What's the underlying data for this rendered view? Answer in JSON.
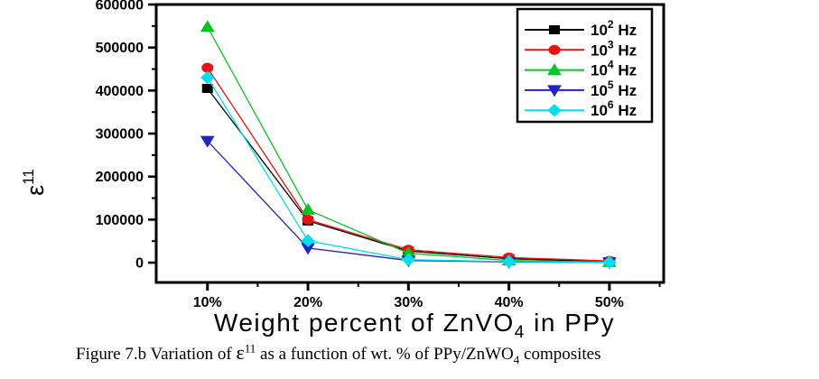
{
  "page": {
    "background": "#ffffff",
    "text_color": "#000000"
  },
  "caption": {
    "prefix": "Figure 7.b Variation of ",
    "epsilon": "ε",
    "epsilon_sup": "11",
    "middle": " as a function of wt. % of PPy/ZnWO",
    "sub": "4",
    "suffix": " composites"
  },
  "chart_data": {
    "type": "line",
    "title": "",
    "xlabel": "Weight percent of ZnVO4 in PPy",
    "xlabel_parts": {
      "main": "Weight percent of ZnVO",
      "sub": "4",
      "tail": "  in PPy"
    },
    "ylabel": "ε11",
    "ylabel_parts": {
      "base": "ε",
      "sup": "11"
    },
    "categories": [
      "10%",
      "20%",
      "30%",
      "40%",
      "50%"
    ],
    "x_values": [
      10,
      20,
      30,
      40,
      50
    ],
    "x_minor_ticks": [
      15,
      25,
      35,
      45,
      55
    ],
    "y_ticks": [
      0,
      100000,
      200000,
      300000,
      400000,
      500000,
      600000
    ],
    "y_tick_labels": [
      "0",
      "100000",
      "200000",
      "300000",
      "400000",
      "500000",
      "600000"
    ],
    "y_minor_ticks": [
      50000,
      150000,
      250000,
      350000,
      450000,
      550000
    ],
    "xlim": [
      4.9,
      55.4
    ],
    "ylim": [
      -46000,
      600000
    ],
    "grid": false,
    "legend_position": "top-right",
    "axis_color": "#000000",
    "series": [
      {
        "name": "10² Hz",
        "label_base": "10",
        "label_exp": "2",
        "label_unit": " Hz",
        "marker": "square",
        "color": "#000000",
        "values": [
          405000,
          97000,
          27000,
          9000,
          2500
        ]
      },
      {
        "name": "10³ Hz",
        "label_base": "10",
        "label_exp": "3",
        "label_unit": " Hz",
        "marker": "circle",
        "color": "#ee1111",
        "values": [
          453000,
          100000,
          30000,
          12000,
          4000
        ]
      },
      {
        "name": "10⁴ Hz",
        "label_base": "10",
        "label_exp": "4",
        "label_unit": " Hz",
        "marker": "triangle-up",
        "color": "#00c81e",
        "values": [
          548000,
          123000,
          22000,
          5000,
          1500
        ]
      },
      {
        "name": "10⁵ Hz",
        "label_base": "10",
        "label_exp": "5",
        "label_unit": " Hz",
        "marker": "triangle-down",
        "color": "#2222cc",
        "values": [
          283000,
          34000,
          5000,
          1500,
          500
        ]
      },
      {
        "name": "10⁶ Hz",
        "label_base": "10",
        "label_exp": "6",
        "label_unit": " Hz",
        "marker": "diamond",
        "color": "#00dff0",
        "values": [
          430000,
          51000,
          7000,
          2500,
          1000
        ]
      }
    ]
  }
}
